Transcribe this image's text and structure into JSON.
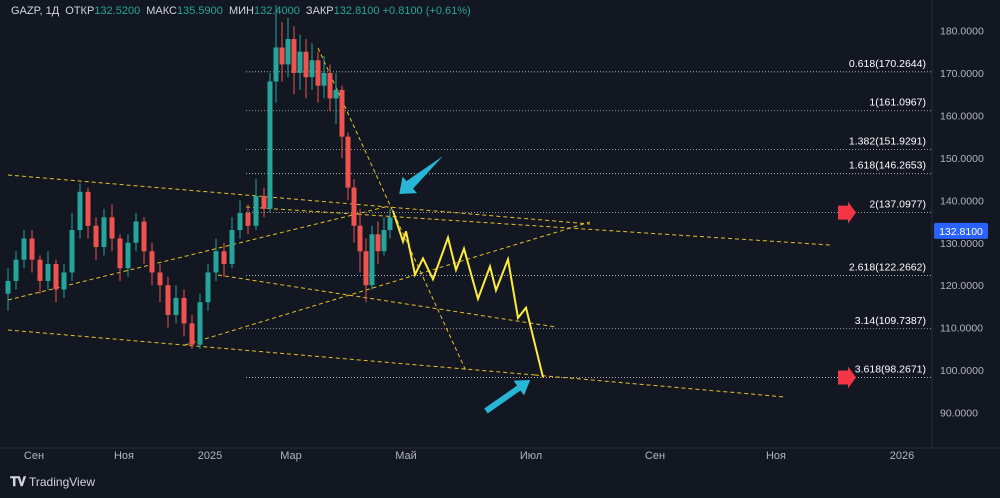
{
  "header": {
    "symbol": "GAZP, 1Д",
    "open_label": "ОТКР",
    "open": "132.5200",
    "high_label": "МАКС",
    "high": "135.5900",
    "low_label": "МИН",
    "low": "132.4000",
    "close_label": "ЗАКР",
    "close": "132.8100",
    "change": "+0.8100 (+0.61%)"
  },
  "footer": {
    "brand": "TradingView"
  },
  "colors": {
    "bg": "#131722",
    "up": "#26a69a",
    "down": "#ef5350",
    "projection": "#ffeb3b",
    "arrow": "#29b6d6",
    "price_tag": "#2962ff"
  },
  "chart_data": {
    "type": "candlestick",
    "symbol": "GAZP",
    "timeframe": "1Д",
    "y_ticks": [
      "180.0000",
      "170.0000",
      "160.0000",
      "150.0000",
      "140.0000",
      "130.0000",
      "120.0000",
      "110.0000",
      "100.0000",
      "90.0000"
    ],
    "ylim": [
      83.7,
      186.5
    ],
    "x_ticks": [
      "Сен",
      "Ноя",
      "2025",
      "Мар",
      "Май",
      "Июл",
      "Сен",
      "Ноя",
      "2026"
    ],
    "last_price": "132.8100",
    "fib_levels": [
      {
        "label": "0.618(170.2644)",
        "value": 170.2644
      },
      {
        "label": "1(161.0967)",
        "value": 161.0967
      },
      {
        "label": "1.382(151.9291)",
        "value": 151.9291
      },
      {
        "label": "1.618(146.2653)",
        "value": 146.2653
      },
      {
        "label": "2(137.0977)",
        "value": 137.0977,
        "marked": true
      },
      {
        "label": "2.618(122.2662)",
        "value": 122.2662
      },
      {
        "label": "3.14(109.7387)",
        "value": 109.7387
      },
      {
        "label": "3.618(98.2671)",
        "value": 98.2671,
        "marked": true
      }
    ],
    "price_path": [
      {
        "t": 0,
        "o": 118,
        "c": 121,
        "h": 124,
        "l": 114
      },
      {
        "t": 8,
        "o": 121,
        "c": 126,
        "h": 128,
        "l": 119
      },
      {
        "t": 16,
        "o": 126,
        "c": 131,
        "h": 133,
        "l": 124
      },
      {
        "t": 24,
        "o": 131,
        "c": 126,
        "h": 133,
        "l": 123
      },
      {
        "t": 32,
        "o": 126,
        "c": 121,
        "h": 127,
        "l": 118
      },
      {
        "t": 40,
        "o": 121,
        "c": 125,
        "h": 128,
        "l": 119
      },
      {
        "t": 48,
        "o": 125,
        "c": 119,
        "h": 126,
        "l": 116
      },
      {
        "t": 56,
        "o": 119,
        "c": 123,
        "h": 125,
        "l": 117
      },
      {
        "t": 64,
        "o": 123,
        "c": 133,
        "h": 137,
        "l": 121
      },
      {
        "t": 72,
        "o": 133,
        "c": 142,
        "h": 144,
        "l": 131
      },
      {
        "t": 80,
        "o": 142,
        "c": 134,
        "h": 143,
        "l": 131
      },
      {
        "t": 88,
        "o": 134,
        "c": 129,
        "h": 136,
        "l": 126
      },
      {
        "t": 96,
        "o": 129,
        "c": 136,
        "h": 138,
        "l": 127
      },
      {
        "t": 104,
        "o": 136,
        "c": 131,
        "h": 139,
        "l": 128
      },
      {
        "t": 112,
        "o": 131,
        "c": 124,
        "h": 132,
        "l": 121
      },
      {
        "t": 120,
        "o": 124,
        "c": 130,
        "h": 132,
        "l": 122
      },
      {
        "t": 128,
        "o": 130,
        "c": 135,
        "h": 137,
        "l": 128
      },
      {
        "t": 136,
        "o": 135,
        "c": 128,
        "h": 136,
        "l": 125
      },
      {
        "t": 144,
        "o": 128,
        "c": 123,
        "h": 130,
        "l": 120
      },
      {
        "t": 152,
        "o": 123,
        "c": 120,
        "h": 125,
        "l": 116
      },
      {
        "t": 160,
        "o": 120,
        "c": 113,
        "h": 122,
        "l": 110
      },
      {
        "t": 168,
        "o": 113,
        "c": 117,
        "h": 120,
        "l": 111
      },
      {
        "t": 176,
        "o": 117,
        "c": 111,
        "h": 119,
        "l": 108
      },
      {
        "t": 184,
        "o": 111,
        "c": 106,
        "h": 113,
        "l": 105
      },
      {
        "t": 192,
        "o": 106,
        "c": 116,
        "h": 118,
        "l": 105
      },
      {
        "t": 200,
        "o": 116,
        "c": 123,
        "h": 125,
        "l": 114
      },
      {
        "t": 208,
        "o": 123,
        "c": 128,
        "h": 131,
        "l": 121
      },
      {
        "t": 216,
        "o": 128,
        "c": 125,
        "h": 130,
        "l": 122
      },
      {
        "t": 224,
        "o": 125,
        "c": 133,
        "h": 136,
        "l": 124
      },
      {
        "t": 232,
        "o": 133,
        "c": 137,
        "h": 140,
        "l": 131
      },
      {
        "t": 240,
        "o": 137,
        "c": 134,
        "h": 139,
        "l": 132
      },
      {
        "t": 248,
        "o": 134,
        "c": 141,
        "h": 145,
        "l": 133
      },
      {
        "t": 256,
        "o": 141,
        "c": 138,
        "h": 143,
        "l": 136
      },
      {
        "t": 262,
        "o": 138,
        "c": 168,
        "h": 170,
        "l": 137
      },
      {
        "t": 268,
        "o": 168,
        "c": 176,
        "h": 186,
        "l": 163
      },
      {
        "t": 274,
        "o": 176,
        "c": 172,
        "h": 182,
        "l": 168
      },
      {
        "t": 280,
        "o": 172,
        "c": 178,
        "h": 183,
        "l": 169
      },
      {
        "t": 286,
        "o": 178,
        "c": 170,
        "h": 181,
        "l": 165
      },
      {
        "t": 292,
        "o": 170,
        "c": 175,
        "h": 179,
        "l": 166
      },
      {
        "t": 298,
        "o": 175,
        "c": 169,
        "h": 178,
        "l": 164
      },
      {
        "t": 304,
        "o": 169,
        "c": 173,
        "h": 177,
        "l": 166
      },
      {
        "t": 310,
        "o": 173,
        "c": 167,
        "h": 175,
        "l": 163
      },
      {
        "t": 316,
        "o": 167,
        "c": 170,
        "h": 174,
        "l": 164
      },
      {
        "t": 322,
        "o": 170,
        "c": 164,
        "h": 172,
        "l": 161
      },
      {
        "t": 328,
        "o": 164,
        "c": 166,
        "h": 170,
        "l": 158
      },
      {
        "t": 334,
        "o": 166,
        "c": 155,
        "h": 167,
        "l": 150
      },
      {
        "t": 340,
        "o": 155,
        "c": 143,
        "h": 156,
        "l": 140
      },
      {
        "t": 346,
        "o": 143,
        "c": 134,
        "h": 145,
        "l": 130
      },
      {
        "t": 352,
        "o": 134,
        "c": 128,
        "h": 138,
        "l": 123
      },
      {
        "t": 358,
        "o": 128,
        "c": 120,
        "h": 131,
        "l": 116
      },
      {
        "t": 364,
        "o": 120,
        "c": 132,
        "h": 134,
        "l": 119
      },
      {
        "t": 370,
        "o": 132,
        "c": 128,
        "h": 135,
        "l": 125
      },
      {
        "t": 376,
        "o": 128,
        "c": 133,
        "h": 136,
        "l": 127
      },
      {
        "t": 382,
        "o": 133,
        "c": 136,
        "h": 138,
        "l": 131
      }
    ],
    "projection": [
      {
        "t": 385,
        "p": 137.5
      },
      {
        "t": 395,
        "p": 130.3
      },
      {
        "t": 398,
        "p": 132.7
      },
      {
        "t": 407,
        "p": 122.5
      },
      {
        "t": 415,
        "p": 126.3
      },
      {
        "t": 425,
        "p": 121.4
      },
      {
        "t": 440,
        "p": 131.2
      },
      {
        "t": 448,
        "p": 123.6
      },
      {
        "t": 456,
        "p": 128.6
      },
      {
        "t": 470,
        "p": 116.8
      },
      {
        "t": 482,
        "p": 124.4
      },
      {
        "t": 488,
        "p": 118.8
      },
      {
        "t": 500,
        "p": 126.1
      },
      {
        "t": 510,
        "p": 112.3
      },
      {
        "t": 518,
        "p": 114.7
      },
      {
        "t": 535,
        "p": 98.3
      }
    ]
  }
}
